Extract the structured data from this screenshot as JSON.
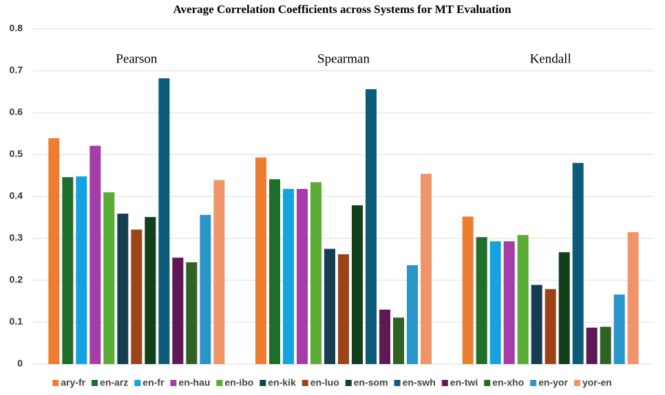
{
  "chart_data": {
    "type": "bar",
    "title": "Average Correlation Coefficients across Systems for MT Evaluation",
    "categories": [
      "Pearson",
      "Spearman",
      "Kendall"
    ],
    "ylim": [
      0,
      0.8
    ],
    "yticks": [
      0,
      0.1,
      0.2,
      0.3,
      0.4,
      0.5,
      0.6,
      0.7,
      0.8
    ],
    "grid": true,
    "legend": "bottom",
    "series": [
      {
        "name": "ary-fr",
        "color": "#ed7d31",
        "values": [
          0.539,
          0.493,
          0.352
        ]
      },
      {
        "name": "en-arz",
        "color": "#1f6e2c",
        "values": [
          0.446,
          0.441,
          0.303
        ]
      },
      {
        "name": "en-fr",
        "color": "#14a3e0",
        "values": [
          0.448,
          0.418,
          0.293
        ]
      },
      {
        "name": "en-hau",
        "color": "#a53ca8",
        "values": [
          0.521,
          0.418,
          0.293
        ]
      },
      {
        "name": "en-ibo",
        "color": "#5bab37",
        "values": [
          0.41,
          0.434,
          0.308
        ]
      },
      {
        "name": "en-kik",
        "color": "#163e52",
        "values": [
          0.359,
          0.275,
          0.189
        ]
      },
      {
        "name": "en-luo",
        "color": "#9c4418",
        "values": [
          0.321,
          0.262,
          0.179
        ]
      },
      {
        "name": "en-som",
        "color": "#123f1c",
        "values": [
          0.351,
          0.379,
          0.267
        ]
      },
      {
        "name": "en-swh",
        "color": "#0d5b7a",
        "values": [
          0.682,
          0.656,
          0.48
        ]
      },
      {
        "name": "en-twi",
        "color": "#5f1a55",
        "values": [
          0.254,
          0.13,
          0.087
        ]
      },
      {
        "name": "en-xho",
        "color": "#2f6324",
        "values": [
          0.243,
          0.111,
          0.089
        ]
      },
      {
        "name": "en-yor",
        "color": "#2a95c9",
        "values": [
          0.356,
          0.236,
          0.166
        ]
      },
      {
        "name": "yor-en",
        "color": "#f0956a",
        "values": [
          0.439,
          0.454,
          0.315
        ]
      }
    ]
  }
}
